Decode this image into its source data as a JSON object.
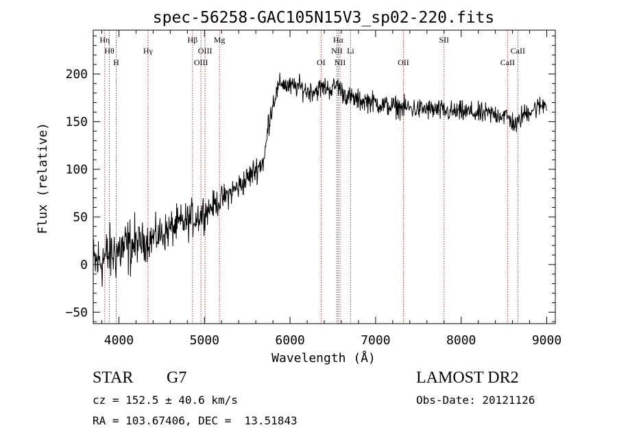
{
  "chart_data": {
    "type": "line",
    "title": "spec-56258-GAC105N15V3_sp02-220.fits",
    "xlabel": "Wavelength (Å)",
    "ylabel": "Flux (relative)",
    "xlim": [
      3700,
      9100
    ],
    "ylim": [
      -62,
      246
    ],
    "xticks": [
      4000,
      5000,
      6000,
      7000,
      8000,
      9000
    ],
    "yticks": [
      -50,
      0,
      50,
      100,
      150,
      200
    ],
    "grid": false,
    "legend": "none",
    "series": [
      {
        "x": [
          3700,
          3800,
          3900,
          4000,
          4100,
          4200,
          4300,
          4400,
          4500,
          4600,
          4700,
          4800,
          4900,
          5000,
          5100,
          5200,
          5300,
          5400,
          5500,
          5600,
          5700,
          5750,
          5800,
          5850,
          5900,
          5950,
          6000,
          6100,
          6200,
          6300,
          6400,
          6500,
          6550,
          6600,
          6700,
          6800,
          6900,
          7000,
          7100,
          7200,
          7300,
          7400,
          7500,
          7600,
          7700,
          7800,
          7900,
          8000,
          8100,
          8200,
          8300,
          8400,
          8500,
          8600,
          8650,
          8700,
          8800,
          8900,
          9000
        ],
        "values": [
          0,
          5,
          10,
          15,
          18,
          22,
          24,
          28,
          32,
          37,
          42,
          46,
          50,
          55,
          62,
          68,
          75,
          82,
          90,
          100,
          110,
          150,
          170,
          182,
          192,
          188,
          186,
          187,
          182,
          183,
          186,
          184,
          190,
          182,
          175,
          172,
          172,
          170,
          167,
          166,
          165,
          164,
          163,
          163,
          162,
          161,
          160,
          160,
          160,
          158,
          158,
          158,
          157,
          150,
          145,
          155,
          162,
          165,
          170
        ],
        "noise": 14
      }
    ],
    "line_markers": [
      {
        "label": "Hη",
        "x": 3835,
        "row": 0
      },
      {
        "label": "Hθ",
        "x": 3889,
        "row": 1
      },
      {
        "label": "H",
        "x": 3968,
        "row": 2
      },
      {
        "label": "Hγ",
        "x": 4340,
        "row": 1
      },
      {
        "label": "Hβ",
        "x": 4861,
        "row": 0
      },
      {
        "label": "OIII",
        "x": 4959,
        "row": 2
      },
      {
        "label": "OIII",
        "x": 5007,
        "row": 1
      },
      {
        "label": "Mg",
        "x": 5175,
        "row": 0
      },
      {
        "label": "OI",
        "x": 6363,
        "row": 2
      },
      {
        "label": "Hα",
        "x": 6563,
        "row": 0
      },
      {
        "label": "NII",
        "x": 6548,
        "row": 1
      },
      {
        "label": "NII",
        "x": 6584,
        "row": 2
      },
      {
        "label": "Li",
        "x": 6708,
        "row": 1
      },
      {
        "label": "OII",
        "x": 7325,
        "row": 2
      },
      {
        "label": "SII",
        "x": 7800,
        "row": 0
      },
      {
        "label": "CaII",
        "x": 8542,
        "row": 2
      },
      {
        "label": "CaII",
        "x": 8662,
        "row": 1
      }
    ]
  },
  "info": {
    "class": "STAR",
    "subclass": "G7",
    "survey": "LAMOST DR2",
    "cz": "cz = 152.5 ± 40.6 km/s",
    "obs_date": "Obs-Date: 20121126",
    "radec": "RA = 103.67406, DEC =  13.51843"
  }
}
